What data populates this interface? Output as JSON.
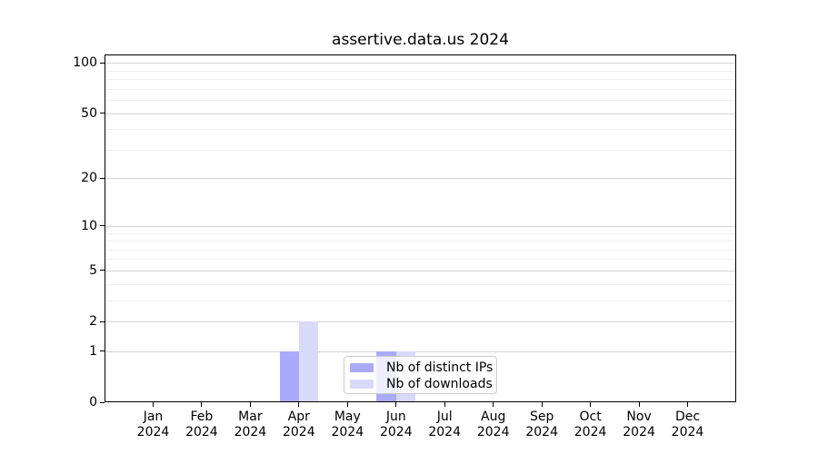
{
  "page": {
    "title": "assertive.data.us 2024"
  },
  "chart_data": {
    "type": "bar",
    "title": "assertive.data.us 2024",
    "categories": [
      "Jan",
      "Feb",
      "Mar",
      "Apr",
      "May",
      "Jun",
      "Jul",
      "Aug",
      "Sep",
      "Oct",
      "Nov",
      "Dec"
    ],
    "category_year": "2024",
    "series": [
      {
        "name": "Nb of distinct IPs",
        "color": "#aaaafa",
        "values": [
          0,
          0,
          0,
          1,
          0,
          1,
          0,
          0,
          0,
          0,
          0,
          0
        ]
      },
      {
        "name": "Nb of downloads",
        "color": "#d9d9fa",
        "values": [
          0,
          0,
          0,
          2,
          0,
          1,
          0,
          0,
          0,
          0,
          0,
          0
        ]
      }
    ],
    "scale": "log1p",
    "ylim": [
      0,
      112
    ],
    "y_major_ticks": [
      0,
      1,
      2,
      5,
      10,
      20,
      50,
      100
    ],
    "y_minor_ticks": [
      3,
      4,
      6,
      7,
      8,
      9,
      30,
      40,
      60,
      70,
      80,
      90
    ],
    "grid": true,
    "legend_position": "inside-bottom-center",
    "axis_color": "#000000",
    "grid_major_color": "#d4d4d4",
    "grid_minor_color": "#eeeeee"
  }
}
